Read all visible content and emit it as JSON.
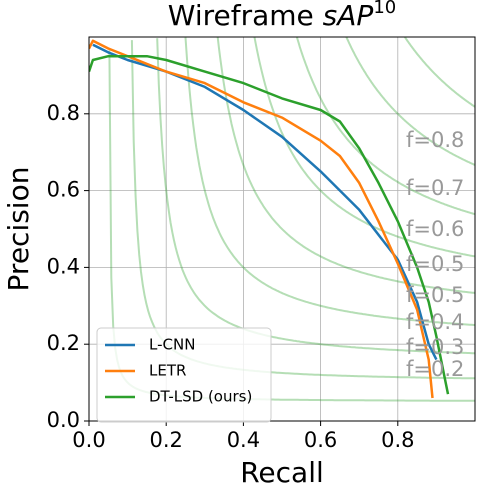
{
  "chart_data": {
    "type": "line",
    "title": "Wireframe ",
    "title_italic": "sAP",
    "title_superscript": "10",
    "x_label": "Recall",
    "y_label": "Precision",
    "xlim": [
      0,
      1
    ],
    "ylim": [
      0,
      1
    ],
    "xticks": [
      {
        "value": 0,
        "label": "0.0"
      },
      0.2,
      0.4,
      0.6,
      0.8
    ],
    "yticks": [
      {
        "value": 0,
        "label": "0.0"
      },
      0.2,
      0.4,
      0.6,
      0.8
    ],
    "grid": true,
    "legend": "lower left",
    "iso_f": [
      0.1,
      0.2,
      0.3,
      0.4,
      0.5,
      0.6,
      0.7,
      0.8,
      0.9
    ],
    "iso_f_color": "#2ca02c",
    "iso_f_labels": [
      "f=0.8",
      "f=0.7",
      "f=0.6",
      "f=0.5",
      "f=0.5",
      "f=0.4",
      "f=0.3",
      "f=0.2"
    ],
    "series": [
      {
        "name": "L-CNN",
        "color": "#1f77b4",
        "x": [
          0.01,
          0.05,
          0.1,
          0.2,
          0.3,
          0.4,
          0.5,
          0.6,
          0.7,
          0.8,
          0.85,
          0.88,
          0.9
        ],
        "values": [
          0.98,
          0.96,
          0.94,
          0.91,
          0.87,
          0.81,
          0.74,
          0.65,
          0.55,
          0.42,
          0.31,
          0.2,
          0.16
        ]
      },
      {
        "name": "LETR",
        "color": "#ff7f0e",
        "x": [
          0.0,
          0.01,
          0.05,
          0.1,
          0.2,
          0.3,
          0.4,
          0.5,
          0.6,
          0.65,
          0.7,
          0.75,
          0.8,
          0.85,
          0.88,
          0.89
        ],
        "values": [
          0.97,
          0.99,
          0.97,
          0.95,
          0.91,
          0.88,
          0.83,
          0.79,
          0.73,
          0.69,
          0.62,
          0.52,
          0.41,
          0.29,
          0.16,
          0.06
        ]
      },
      {
        "name": "DT-LSD (ours)",
        "color": "#2ca02c",
        "x": [
          0.0,
          0.01,
          0.05,
          0.1,
          0.15,
          0.2,
          0.3,
          0.4,
          0.5,
          0.6,
          0.65,
          0.7,
          0.75,
          0.8,
          0.85,
          0.88,
          0.9,
          0.92,
          0.93
        ],
        "values": [
          0.91,
          0.94,
          0.95,
          0.95,
          0.95,
          0.94,
          0.91,
          0.88,
          0.84,
          0.81,
          0.78,
          0.71,
          0.62,
          0.52,
          0.4,
          0.31,
          0.22,
          0.12,
          0.07
        ]
      }
    ]
  }
}
